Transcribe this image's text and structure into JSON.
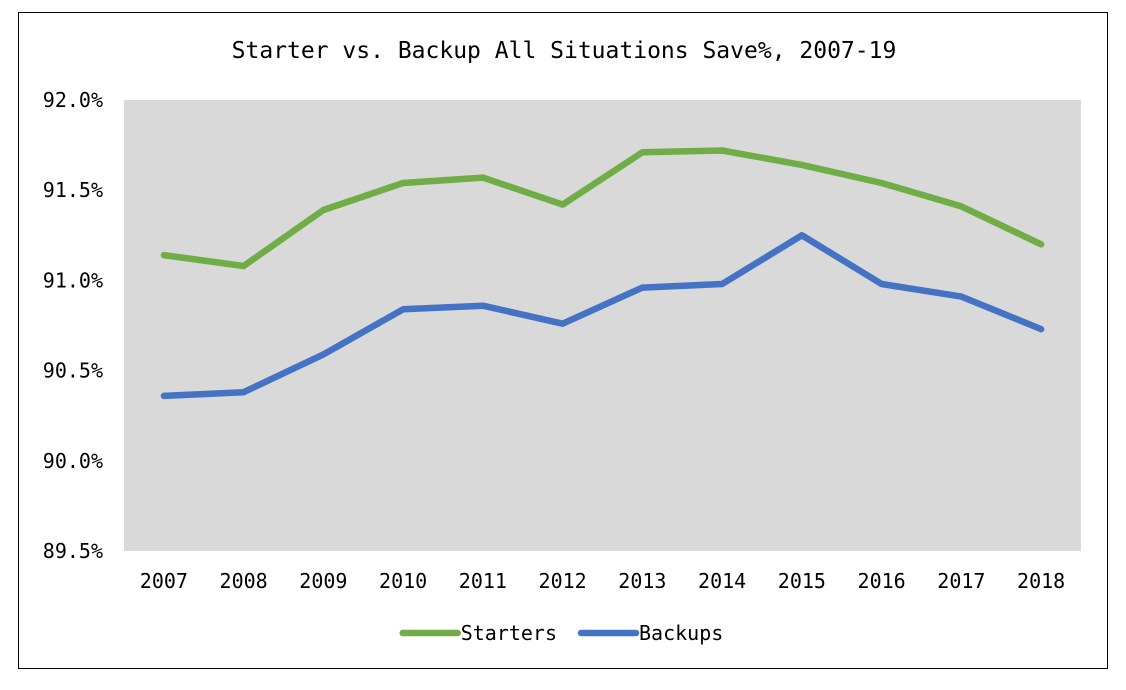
{
  "chart_data": {
    "type": "line",
    "title": "Starter vs. Backup All Situations Save%, 2007-19",
    "xlabel": "",
    "ylabel": "",
    "categories": [
      "2007",
      "2008",
      "2009",
      "2010",
      "2011",
      "2012",
      "2013",
      "2014",
      "2015",
      "2016",
      "2017",
      "2018"
    ],
    "yticks": [
      "89.5%",
      "90.0%",
      "90.5%",
      "91.0%",
      "91.5%",
      "92.0%"
    ],
    "ylim": [
      89.5,
      92.0
    ],
    "grid": false,
    "legend_position": "bottom",
    "series": [
      {
        "name": "Starters",
        "color": "#70AD47",
        "values": [
          91.14,
          91.08,
          91.39,
          91.54,
          91.57,
          91.42,
          91.71,
          91.72,
          91.64,
          91.54,
          91.41,
          91.2
        ]
      },
      {
        "name": "Backups",
        "color": "#4472C4",
        "values": [
          90.36,
          90.38,
          90.59,
          90.84,
          90.86,
          90.76,
          90.96,
          90.98,
          91.25,
          90.98,
          90.91,
          90.73
        ]
      }
    ],
    "plot_background": "#D9D9D9"
  }
}
